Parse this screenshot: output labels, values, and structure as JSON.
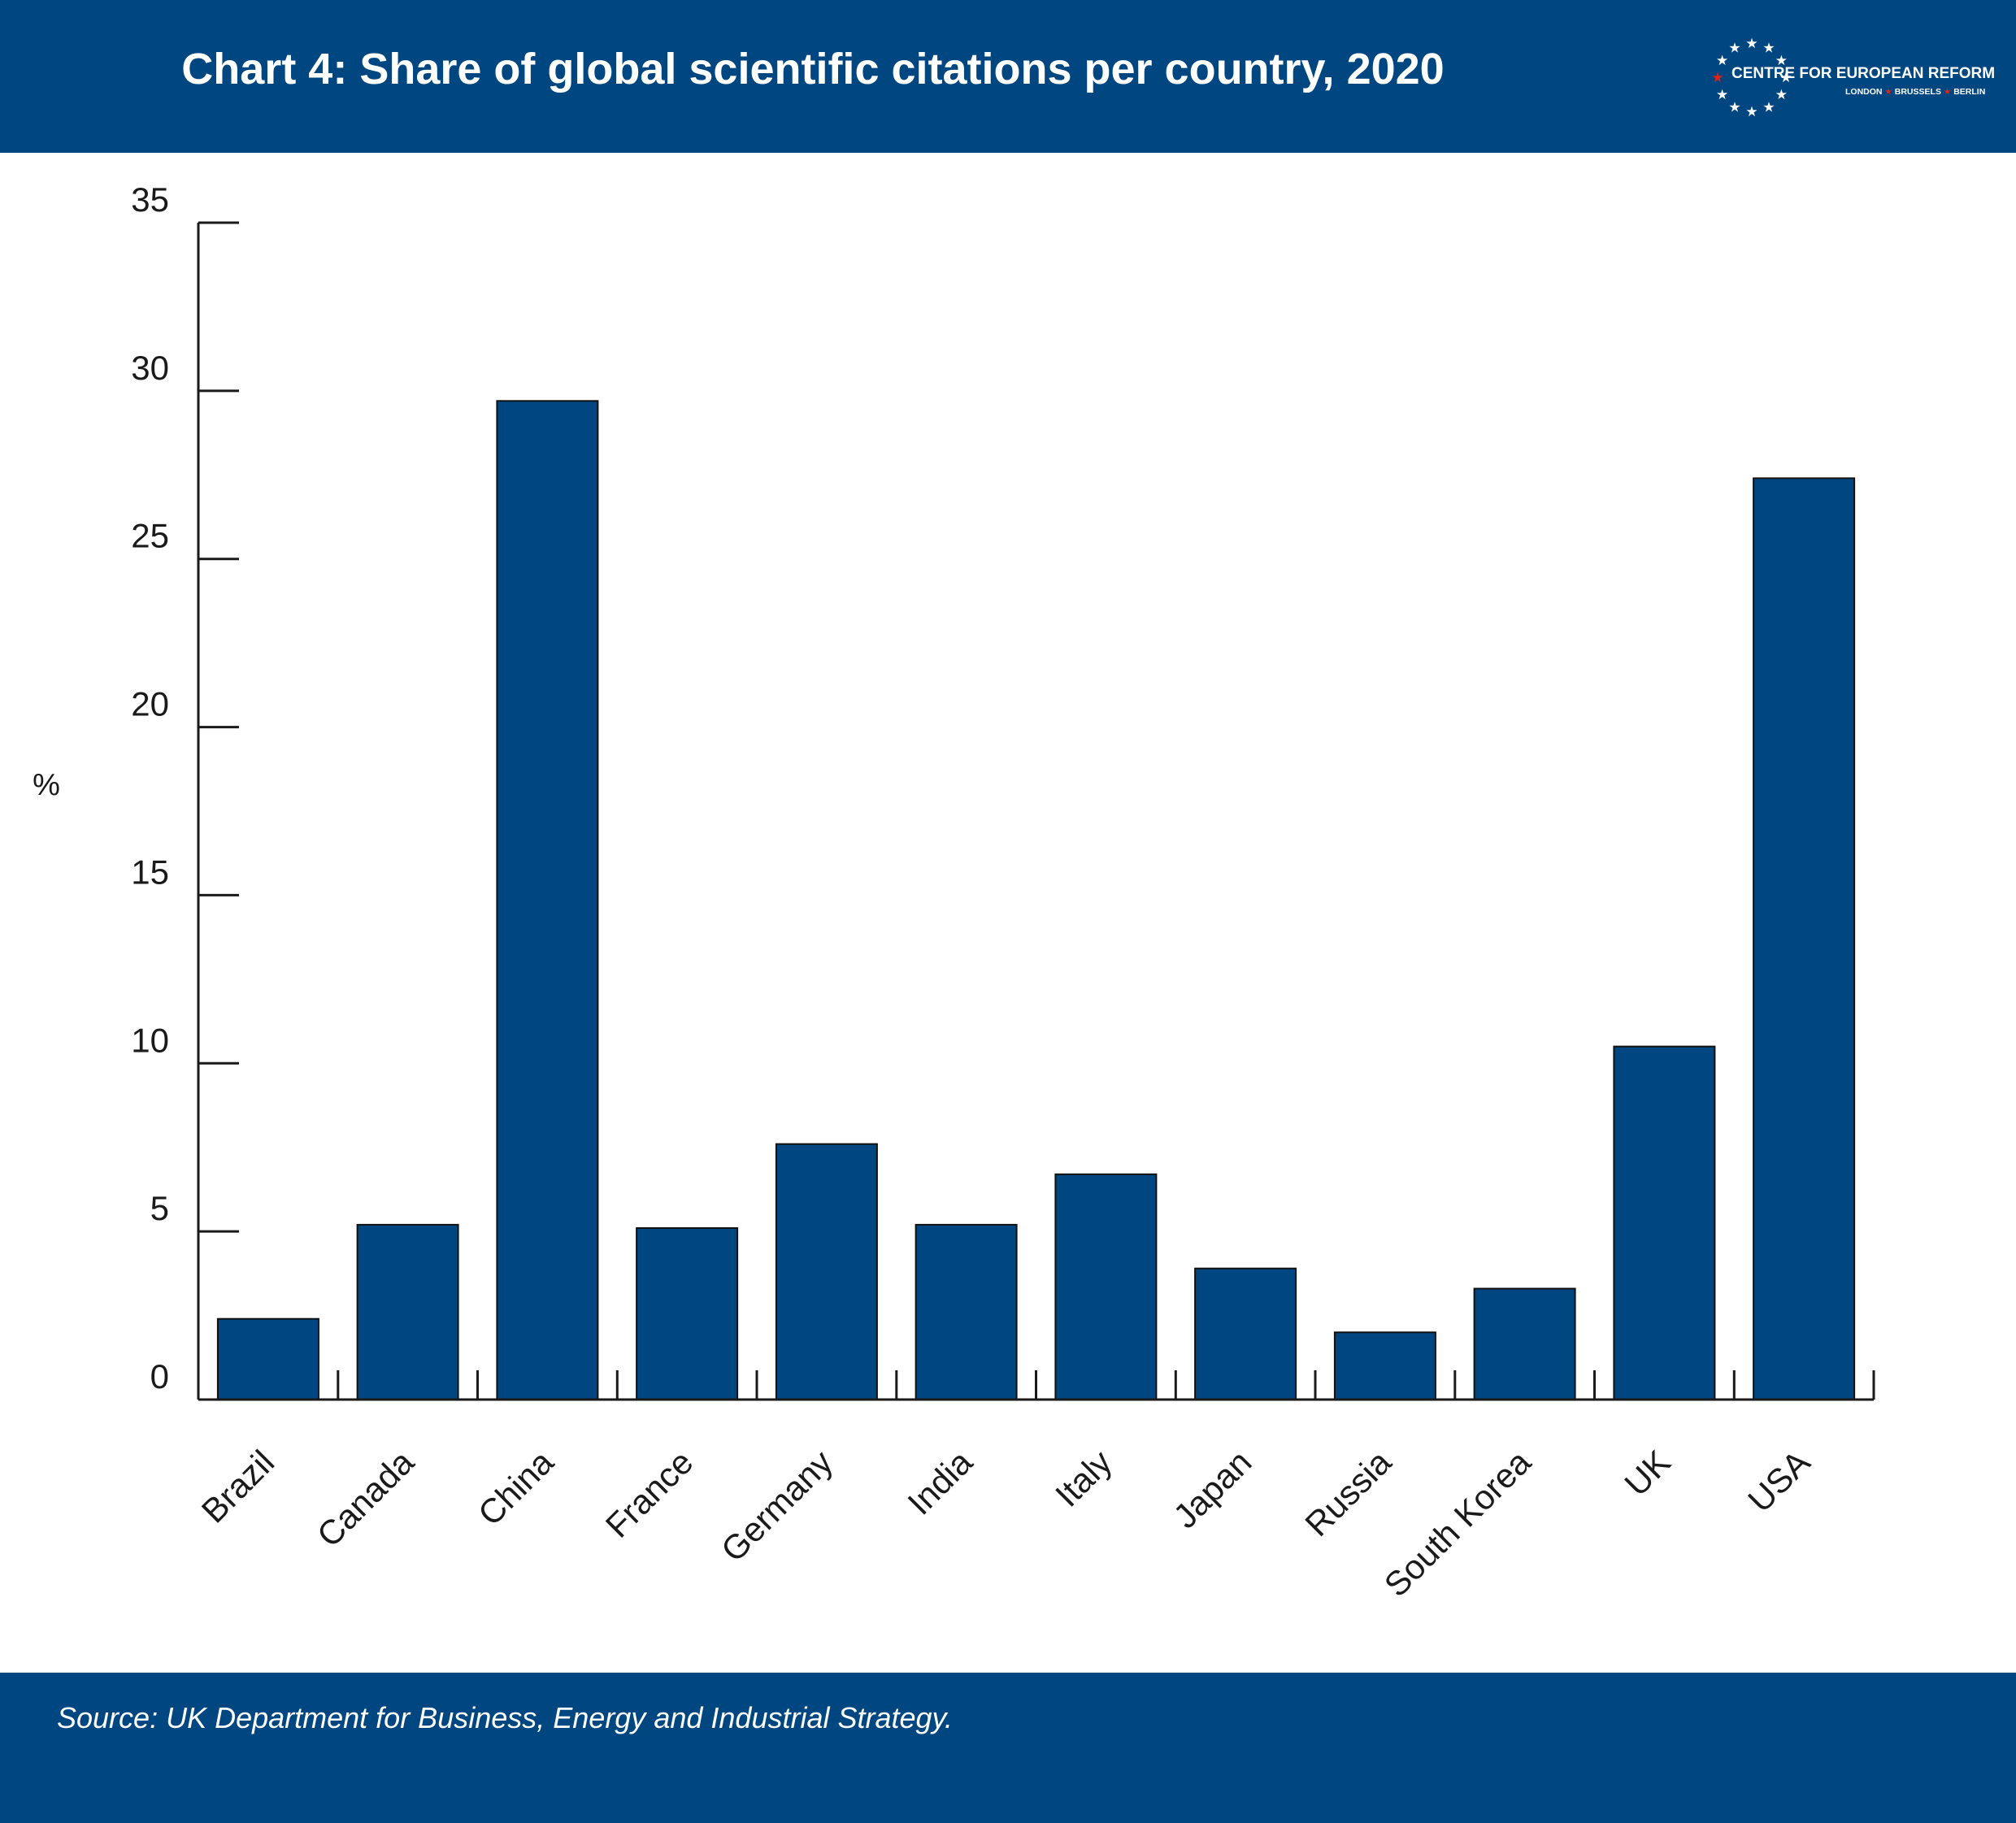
{
  "header": {
    "title": "Chart 4: Share of global scientific citations per country, 2020",
    "background": "#004680"
  },
  "logo": {
    "name": "CENTRE FOR EUROPEAN REFORM",
    "cities": [
      "LONDON",
      "BRUSSELS",
      "BERLIN"
    ],
    "star_accent": "#e2231a"
  },
  "chart_data": {
    "type": "bar",
    "title": "Chart 4: Share of global scientific citations per country, 2020",
    "xlabel": "",
    "ylabel": "%",
    "ylim": [
      0,
      35
    ],
    "yticks": [
      0,
      5,
      10,
      15,
      20,
      25,
      30,
      35
    ],
    "categories": [
      "Brazil",
      "Canada",
      "China",
      "France",
      "Germany",
      "India",
      "Italy",
      "Japan",
      "Russia",
      "South Korea",
      "UK",
      "USA"
    ],
    "values": [
      2.4,
      5.2,
      29.7,
      5.1,
      7.6,
      5.2,
      6.7,
      3.9,
      2.0,
      3.3,
      10.5,
      27.4
    ],
    "bar_color": "#004680",
    "grid": false,
    "legend": "none"
  },
  "footer": {
    "source": "Source: UK Department for Business, Energy and Industrial Strategy."
  }
}
